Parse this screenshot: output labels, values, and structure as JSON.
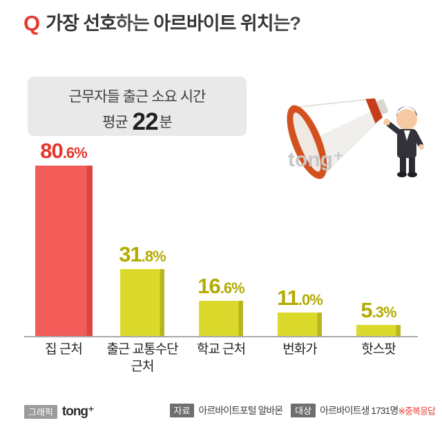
{
  "title": {
    "q": "Q",
    "part1": "가장 선호",
    "part2": "하는 ",
    "part3": "아르바이트 위치",
    "part4": "는?"
  },
  "callout": {
    "line1": "근무자들 출근 소요 시간",
    "avg_prefix": "평균 ",
    "avg_value": "22",
    "avg_suffix": "분"
  },
  "illustration": {
    "watermark": "tong⁺"
  },
  "chart_data": {
    "type": "bar",
    "title": "가장 선호하는 아르바이트 위치는?",
    "categories": [
      "집 근처",
      "출근 교통수단 근처",
      "학교 근처",
      "번화가",
      "핫스팟"
    ],
    "values": [
      80.6,
      31.8,
      16.6,
      11.0,
      5.3
    ],
    "unit": "%",
    "ylim": [
      0,
      100
    ],
    "labels": [
      {
        "int": "80",
        "dec": ".6%"
      },
      {
        "int": "31",
        "dec": ".8%"
      },
      {
        "int": "16",
        "dec": ".6%"
      },
      {
        "int": "11",
        "dec": ".0%"
      },
      {
        "int": "5",
        "dec": ".3%"
      }
    ],
    "bar_colors": [
      "#f25d5a",
      "#dcd92d",
      "#dcd92d",
      "#dcd92d",
      "#dcd92d"
    ],
    "bar_edge_colors": [
      "#de4545",
      "#b9b51f",
      "#b9b51f",
      "#b9b51f",
      "#b9b51f"
    ],
    "label_colors": [
      "#e7352a",
      "#b2ab00",
      "#b2ab00",
      "#b2ab00",
      "#b2ab00"
    ],
    "legend": null,
    "grid": false
  },
  "footer": {
    "graphic_badge": "그래픽",
    "logo": "tong⁺",
    "source_badge": "자료",
    "source_text": "아르바이트포털 알바몬",
    "target_badge": "대상",
    "target_text": "아르바이트생 1731명",
    "note": "※중복응답"
  }
}
